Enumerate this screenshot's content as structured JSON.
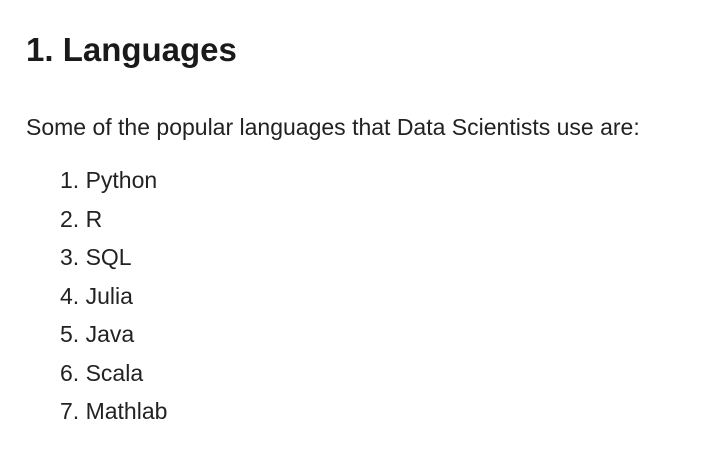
{
  "heading": "1. Languages",
  "intro": "Some of the popular languages that Data Scientists use are:",
  "languages": [
    {
      "number": "1.",
      "name": "Python"
    },
    {
      "number": "2.",
      "name": "R"
    },
    {
      "number": "3.",
      "name": "SQL"
    },
    {
      "number": "4.",
      "name": "Julia"
    },
    {
      "number": "5.",
      "name": "Java"
    },
    {
      "number": "6.",
      "name": "Scala"
    },
    {
      "number": "7.",
      "name": "Mathlab"
    }
  ]
}
